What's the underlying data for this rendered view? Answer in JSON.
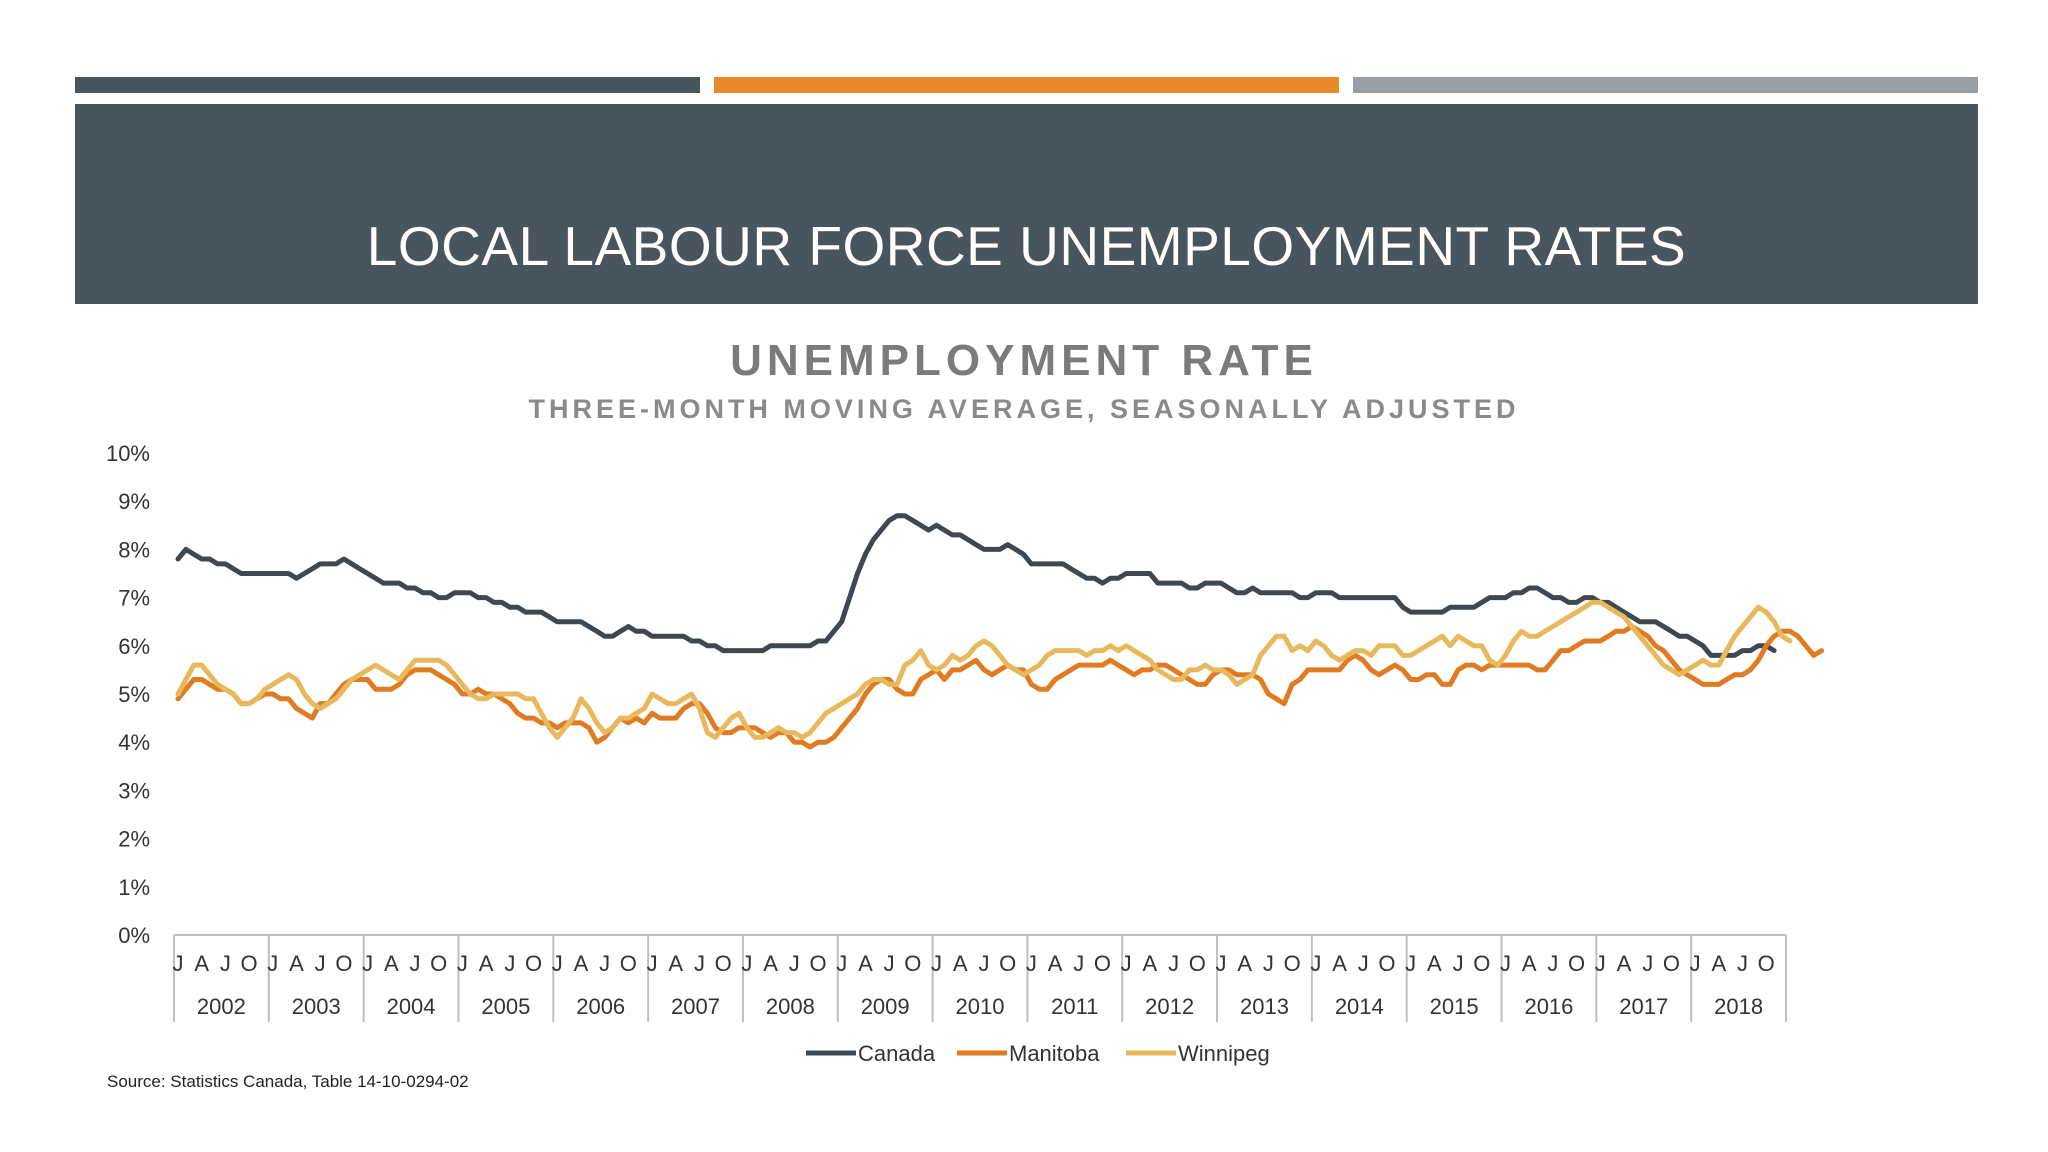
{
  "slide": {
    "title": "LOCAL LABOUR FORCE UNEMPLOYMENT RATES",
    "source": "Source: Statistics Canada, Table 14-10-0294-02",
    "bar_colors": [
      "#48555c",
      "#e8892b",
      "#98a0a3"
    ],
    "banner_color": "#48555c"
  },
  "chart_data": {
    "type": "line",
    "title": "UNEMPLOYMENT RATE",
    "subtitle": "THREE-MONTH MOVING AVERAGE, SEASONALLY ADJUSTED",
    "x_unit": "month",
    "start": "2002-01",
    "years": [
      "2002",
      "2003",
      "2004",
      "2005",
      "2006",
      "2007",
      "2008",
      "2009",
      "2010",
      "2011",
      "2012",
      "2013",
      "2014",
      "2015",
      "2016",
      "2017",
      "2018"
    ],
    "month_ticks": [
      "J",
      "A",
      "J",
      "O"
    ],
    "ylim": [
      0,
      10
    ],
    "yticks": [
      "0%",
      "1%",
      "2%",
      "3%",
      "4%",
      "5%",
      "6%",
      "7%",
      "8%",
      "9%",
      "10%"
    ],
    "legend_position": "bottom",
    "grid": false,
    "series": [
      {
        "name": "Canada",
        "color": "#3f484e",
        "values": [
          7.8,
          8.0,
          7.9,
          7.8,
          7.8,
          7.7,
          7.7,
          7.6,
          7.5,
          7.5,
          7.5,
          7.5,
          7.5,
          7.5,
          7.5,
          7.4,
          7.5,
          7.6,
          7.7,
          7.7,
          7.7,
          7.8,
          7.7,
          7.6,
          7.5,
          7.4,
          7.3,
          7.3,
          7.3,
          7.2,
          7.2,
          7.1,
          7.1,
          7.0,
          7.0,
          7.1,
          7.1,
          7.1,
          7.0,
          7.0,
          6.9,
          6.9,
          6.8,
          6.8,
          6.7,
          6.7,
          6.7,
          6.6,
          6.5,
          6.5,
          6.5,
          6.5,
          6.4,
          6.3,
          6.2,
          6.2,
          6.3,
          6.4,
          6.3,
          6.3,
          6.2,
          6.2,
          6.2,
          6.2,
          6.2,
          6.1,
          6.1,
          6.0,
          6.0,
          5.9,
          5.9,
          5.9,
          5.9,
          5.9,
          5.9,
          6.0,
          6.0,
          6.0,
          6.0,
          6.0,
          6.0,
          6.1,
          6.1,
          6.3,
          6.5,
          7.0,
          7.5,
          7.9,
          8.2,
          8.4,
          8.6,
          8.7,
          8.7,
          8.6,
          8.5,
          8.4,
          8.5,
          8.4,
          8.3,
          8.3,
          8.2,
          8.1,
          8.0,
          8.0,
          8.0,
          8.1,
          8.0,
          7.9,
          7.7,
          7.7,
          7.7,
          7.7,
          7.7,
          7.6,
          7.5,
          7.4,
          7.4,
          7.3,
          7.4,
          7.4,
          7.5,
          7.5,
          7.5,
          7.5,
          7.3,
          7.3,
          7.3,
          7.3,
          7.2,
          7.2,
          7.3,
          7.3,
          7.3,
          7.2,
          7.1,
          7.1,
          7.2,
          7.1,
          7.1,
          7.1,
          7.1,
          7.1,
          7.0,
          7.0,
          7.1,
          7.1,
          7.1,
          7.0,
          7.0,
          7.0,
          7.0,
          7.0,
          7.0,
          7.0,
          7.0,
          6.8,
          6.7,
          6.7,
          6.7,
          6.7,
          6.7,
          6.8,
          6.8,
          6.8,
          6.8,
          6.9,
          7.0,
          7.0,
          7.0,
          7.1,
          7.1,
          7.2,
          7.2,
          7.1,
          7.0,
          7.0,
          6.9,
          6.9,
          7.0,
          7.0,
          6.9,
          6.9,
          6.8,
          6.7,
          6.6,
          6.5,
          6.5,
          6.5,
          6.4,
          6.3,
          6.2,
          6.2,
          6.1,
          6.0,
          5.8,
          5.8,
          5.8,
          5.8,
          5.9,
          5.9,
          6.0,
          6.0,
          5.9
        ]
      },
      {
        "name": "Manitoba",
        "color": "#e07b22",
        "values": [
          4.9,
          5.1,
          5.3,
          5.3,
          5.2,
          5.1,
          5.1,
          5.0,
          4.8,
          4.8,
          4.9,
          5.0,
          5.0,
          4.9,
          4.9,
          4.7,
          4.6,
          4.5,
          4.8,
          4.8,
          5.0,
          5.2,
          5.3,
          5.3,
          5.3,
          5.1,
          5.1,
          5.1,
          5.2,
          5.4,
          5.5,
          5.5,
          5.5,
          5.4,
          5.3,
          5.2,
          5.0,
          5.0,
          5.1,
          5.0,
          5.0,
          4.9,
          4.8,
          4.6,
          4.5,
          4.5,
          4.4,
          4.4,
          4.3,
          4.4,
          4.4,
          4.4,
          4.3,
          4.0,
          4.1,
          4.3,
          4.5,
          4.4,
          4.5,
          4.4,
          4.6,
          4.5,
          4.5,
          4.5,
          4.7,
          4.8,
          4.8,
          4.6,
          4.3,
          4.2,
          4.2,
          4.3,
          4.3,
          4.3,
          4.2,
          4.1,
          4.2,
          4.2,
          4.0,
          4.0,
          3.9,
          4.0,
          4.0,
          4.1,
          4.3,
          4.5,
          4.7,
          5.0,
          5.2,
          5.3,
          5.3,
          5.1,
          5.0,
          5.0,
          5.3,
          5.4,
          5.5,
          5.3,
          5.5,
          5.5,
          5.6,
          5.7,
          5.5,
          5.4,
          5.5,
          5.6,
          5.5,
          5.5,
          5.2,
          5.1,
          5.1,
          5.3,
          5.4,
          5.5,
          5.6,
          5.6,
          5.6,
          5.6,
          5.7,
          5.6,
          5.5,
          5.4,
          5.5,
          5.5,
          5.6,
          5.6,
          5.5,
          5.4,
          5.3,
          5.2,
          5.2,
          5.4,
          5.5,
          5.5,
          5.4,
          5.4,
          5.4,
          5.3,
          5.0,
          4.9,
          4.8,
          5.2,
          5.3,
          5.5,
          5.5,
          5.5,
          5.5,
          5.5,
          5.7,
          5.8,
          5.7,
          5.5,
          5.4,
          5.5,
          5.6,
          5.5,
          5.3,
          5.3,
          5.4,
          5.4,
          5.2,
          5.2,
          5.5,
          5.6,
          5.6,
          5.5,
          5.6,
          5.6,
          5.6,
          5.6,
          5.6,
          5.6,
          5.5,
          5.5,
          5.7,
          5.9,
          5.9,
          6.0,
          6.1,
          6.1,
          6.1,
          6.2,
          6.3,
          6.3,
          6.4,
          6.3,
          6.2,
          6.0,
          5.9,
          5.7,
          5.5,
          5.4,
          5.3,
          5.2,
          5.2,
          5.2,
          5.3,
          5.4,
          5.4,
          5.5,
          5.7,
          6.0,
          6.2,
          6.3,
          6.3,
          6.2,
          6.0,
          5.8,
          5.9
        ]
      },
      {
        "name": "Winnipeg",
        "color": "#e8b95c",
        "values": [
          5.0,
          5.3,
          5.6,
          5.6,
          5.4,
          5.2,
          5.1,
          5.0,
          4.8,
          4.8,
          4.9,
          5.1,
          5.2,
          5.3,
          5.4,
          5.3,
          5.0,
          4.8,
          4.7,
          4.8,
          4.9,
          5.1,
          5.3,
          5.4,
          5.5,
          5.6,
          5.5,
          5.4,
          5.3,
          5.5,
          5.7,
          5.7,
          5.7,
          5.7,
          5.6,
          5.4,
          5.2,
          5.0,
          4.9,
          4.9,
          5.0,
          5.0,
          5.0,
          5.0,
          4.9,
          4.9,
          4.6,
          4.3,
          4.1,
          4.3,
          4.5,
          4.9,
          4.7,
          4.4,
          4.2,
          4.3,
          4.5,
          4.5,
          4.6,
          4.7,
          5.0,
          4.9,
          4.8,
          4.8,
          4.9,
          5.0,
          4.7,
          4.2,
          4.1,
          4.3,
          4.5,
          4.6,
          4.3,
          4.1,
          4.1,
          4.2,
          4.3,
          4.2,
          4.2,
          4.1,
          4.2,
          4.4,
          4.6,
          4.7,
          4.8,
          4.9,
          5.0,
          5.2,
          5.3,
          5.3,
          5.2,
          5.2,
          5.6,
          5.7,
          5.9,
          5.6,
          5.5,
          5.6,
          5.8,
          5.7,
          5.8,
          6.0,
          6.1,
          6.0,
          5.8,
          5.6,
          5.5,
          5.4,
          5.5,
          5.6,
          5.8,
          5.9,
          5.9,
          5.9,
          5.9,
          5.8,
          5.9,
          5.9,
          6.0,
          5.9,
          6.0,
          5.9,
          5.8,
          5.7,
          5.5,
          5.4,
          5.3,
          5.3,
          5.5,
          5.5,
          5.6,
          5.5,
          5.5,
          5.4,
          5.2,
          5.3,
          5.4,
          5.8,
          6.0,
          6.2,
          6.2,
          5.9,
          6.0,
          5.9,
          6.1,
          6.0,
          5.8,
          5.7,
          5.8,
          5.9,
          5.9,
          5.8,
          6.0,
          6.0,
          6.0,
          5.8,
          5.8,
          5.9,
          6.0,
          6.1,
          6.2,
          6.0,
          6.2,
          6.1,
          6.0,
          6.0,
          5.7,
          5.6,
          5.8,
          6.1,
          6.3,
          6.2,
          6.2,
          6.3,
          6.4,
          6.5,
          6.6,
          6.7,
          6.8,
          6.9,
          6.9,
          6.8,
          6.7,
          6.6,
          6.4,
          6.2,
          6.0,
          5.8,
          5.6,
          5.5,
          5.4,
          5.5,
          5.6,
          5.7,
          5.6,
          5.6,
          5.9,
          6.2,
          6.4,
          6.6,
          6.8,
          6.7,
          6.5,
          6.2,
          6.1
        ]
      }
    ]
  }
}
